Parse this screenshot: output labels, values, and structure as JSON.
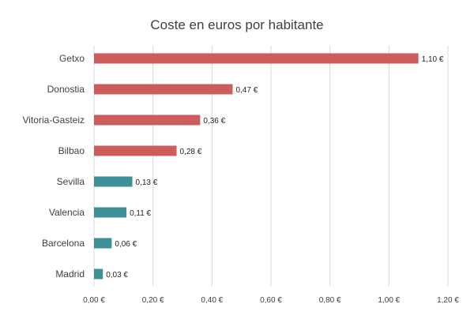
{
  "chart_data": {
    "type": "bar",
    "orientation": "horizontal",
    "title": "Coste en euros por habitante",
    "xlabel": "",
    "ylabel": "",
    "categories": [
      "Getxo",
      "Donostia",
      "Vitoria-Gasteiz",
      "Bilbao",
      "Sevilla",
      "Valencia",
      "Barcelona",
      "Madrid"
    ],
    "values": [
      1.1,
      0.47,
      0.36,
      0.28,
      0.13,
      0.11,
      0.06,
      0.03
    ],
    "data_labels": [
      "1,10 €",
      "0,47 €",
      "0,36 €",
      "0,28 €",
      "0,13 €",
      "0,11 €",
      "0,06 €",
      "0,03 €"
    ],
    "bar_colors": [
      "#cd5c5c",
      "#cd5c5c",
      "#cd5c5c",
      "#cd5c5c",
      "#3d9097",
      "#3d9097",
      "#3d9097",
      "#3d9097"
    ],
    "xlim": [
      0,
      1.2
    ],
    "xticks": [
      0,
      0.2,
      0.4,
      0.6,
      0.8,
      1.0,
      1.2
    ],
    "xtick_labels": [
      "0,00 €",
      "0,20 €",
      "0,40 €",
      "0,60 €",
      "0,80 €",
      "1,00 €",
      "1,20 €"
    ],
    "grid": "vertical",
    "legend": "none"
  }
}
